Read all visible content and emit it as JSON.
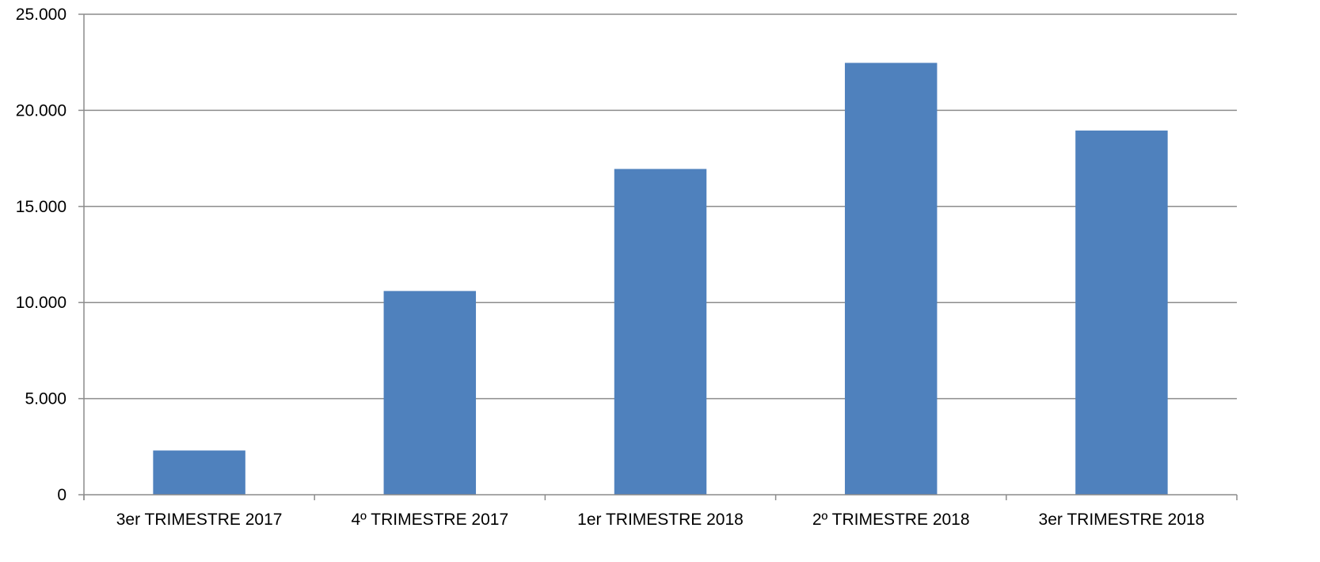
{
  "chart_data": {
    "type": "bar",
    "categories": [
      "3er TRIMESTRE 2017",
      "4º TRIMESTRE 2017",
      "1er TRIMESTRE 2018",
      "2º TRIMESTRE 2018",
      "3er TRIMESTRE 2018"
    ],
    "series": [
      {
        "values": [
          2300,
          10600,
          16950,
          22470,
          18950
        ],
        "color": "#4f81bd"
      }
    ],
    "ylim": [
      0,
      25000
    ],
    "yticks": [
      0,
      5000,
      10000,
      15000,
      20000,
      25000
    ],
    "ytick_labels": [
      "0",
      "5.000",
      "10.000",
      "15.000",
      "20.000",
      "25.000"
    ],
    "title": "",
    "xlabel": "",
    "ylabel": "",
    "grid": true,
    "legend": "none"
  }
}
